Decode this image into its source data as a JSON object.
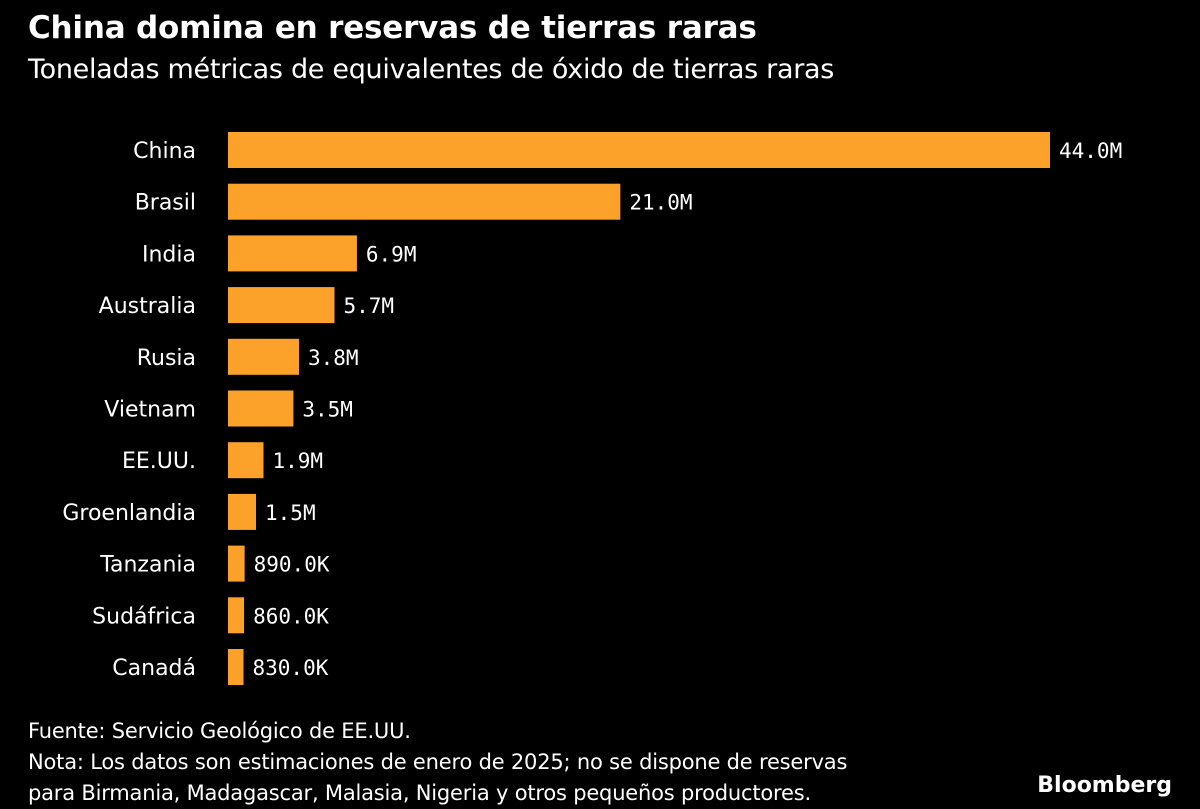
{
  "chart_data": {
    "type": "bar",
    "orientation": "horizontal",
    "title": "China domina en reservas de tierras raras",
    "subtitle": "Toneladas métricas de equivalentes de óxido de tierras raras",
    "xlabel": "",
    "ylabel": "",
    "categories": [
      "China",
      "Brasil",
      "India",
      "Australia",
      "Rusia",
      "Vietnam",
      "EE.UU.",
      "Groenlandia",
      "Tanzania",
      "Sudáfrica",
      "Canadá"
    ],
    "values": [
      44000000,
      21000000,
      6900000,
      5700000,
      3800000,
      3500000,
      1900000,
      1500000,
      890000,
      860000,
      830000
    ],
    "value_labels": [
      "44.0M",
      "21.0M",
      "6.9M",
      "5.7M",
      "3.8M",
      "3.5M",
      "1.9M",
      "1.5M",
      "890.0K",
      "860.0K",
      "830.0K"
    ],
    "xlim": [
      0,
      44000000
    ],
    "grid": false,
    "legend": "none",
    "bar_color": "#fca22b"
  },
  "footer": {
    "source": "Fuente: Servicio Geológico de EE.UU.",
    "note_line1": "Nota: Los datos son estimaciones de enero de 2025; no se dispone de reservas",
    "note_line2": "para Birmania, Madagascar, Malasia, Nigeria y otros pequeños productores.",
    "brand": "Bloomberg"
  }
}
